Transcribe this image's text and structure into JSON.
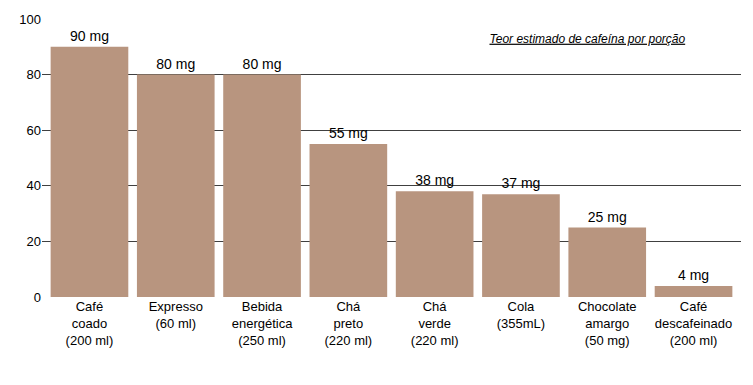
{
  "chart_data": {
    "type": "bar",
    "title": "Teor estimado de cafeína por porção",
    "categories": [
      "Café\ncoado\n(200 ml)",
      "Expresso\n(60 ml)",
      "Bebida\nenergética\n(250 ml)",
      "Chá\npreto\n(220 ml)",
      "Chá\nverde\n(220 ml)",
      "Cola\n(355mL)",
      "Chocolate\namargo\n(50 mg)",
      "Café\ndescafeinado\n(200 ml)"
    ],
    "values": [
      90,
      80,
      80,
      55,
      38,
      37,
      25,
      4
    ],
    "value_labels": [
      "90 mg",
      "80 mg",
      "80 mg",
      "55 mg",
      "38 mg",
      "37 mg",
      "25 mg",
      "4 mg"
    ],
    "data_labels": true,
    "color": "#b8957f",
    "ylim": [
      0,
      100
    ],
    "yticks": [
      0,
      20,
      40,
      60,
      80,
      100
    ],
    "grid": true
  }
}
